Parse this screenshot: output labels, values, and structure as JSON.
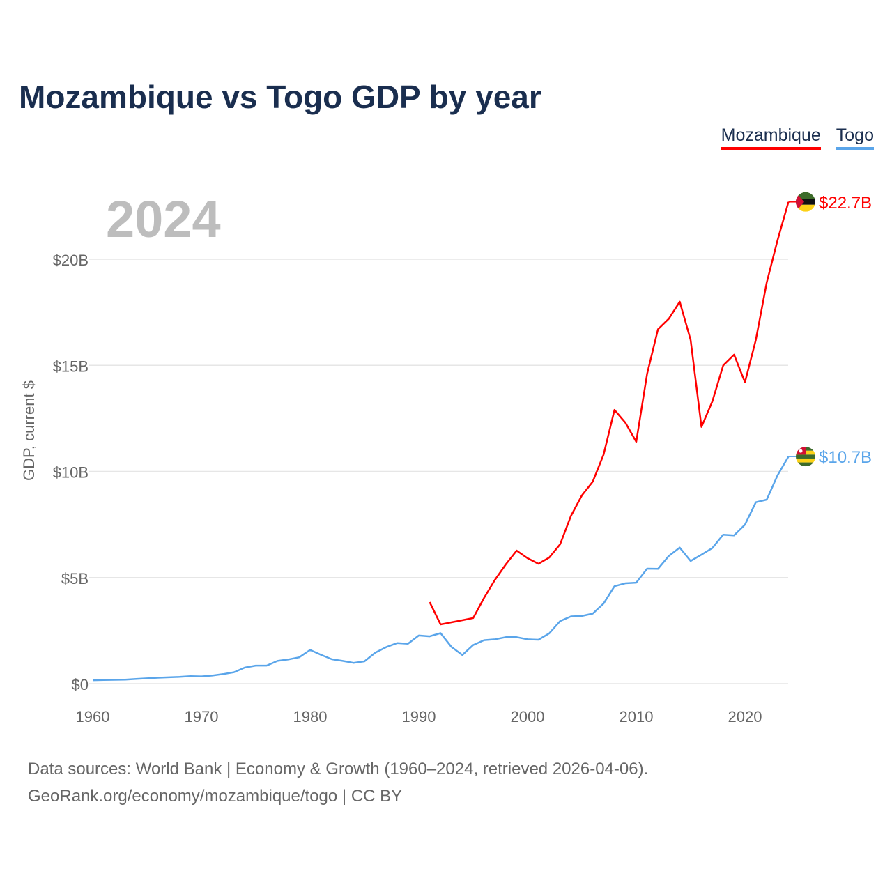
{
  "title": "Mozambique vs Togo GDP by year",
  "year_label": "2024",
  "footer": {
    "line1": "Data sources: World Bank | Economy & Growth (1960–2024, retrieved 2026-04-06).",
    "line2": "GeoRank.org/economy/mozambique/togo | CC BY"
  },
  "chart_data": {
    "type": "line",
    "title": "Mozambique vs Togo GDP by year",
    "xlabel": "",
    "ylabel": "GDP, current $",
    "xlim": [
      1960,
      2024
    ],
    "ylim": [
      0,
      23
    ],
    "x_ticks": [
      1960,
      1970,
      1980,
      1990,
      2000,
      2010,
      2020
    ],
    "y_ticks": [
      {
        "v": 0,
        "label": "$0"
      },
      {
        "v": 5,
        "label": "$5B"
      },
      {
        "v": 10,
        "label": "$10B"
      },
      {
        "v": 15,
        "label": "$15B"
      },
      {
        "v": 20,
        "label": "$20B"
      }
    ],
    "grid": true,
    "legend_position": "top-right",
    "series": [
      {
        "name": "Mozambique",
        "color": "#ff0000",
        "end_label": "$22.7B",
        "flag": "mozambique-flag",
        "start": 1991,
        "values": [
          3.84,
          2.79,
          2.89,
          2.99,
          3.09,
          4.04,
          4.89,
          5.62,
          6.27,
          5.91,
          5.65,
          5.94,
          6.57,
          7.91,
          8.87,
          9.52,
          10.8,
          12.9,
          12.3,
          11.4,
          14.6,
          16.7,
          17.2,
          18.0,
          16.2,
          12.1,
          13.3,
          15.0,
          15.5,
          14.2,
          16.2,
          18.9,
          20.9,
          22.7
        ]
      },
      {
        "name": "Togo",
        "color": "#5aa5ea",
        "end_label": "$10.7B",
        "flag": "togo-flag",
        "start": 1960,
        "values": [
          0.16,
          0.17,
          0.18,
          0.19,
          0.22,
          0.25,
          0.28,
          0.3,
          0.32,
          0.35,
          0.34,
          0.38,
          0.45,
          0.54,
          0.76,
          0.85,
          0.85,
          1.07,
          1.14,
          1.24,
          1.59,
          1.36,
          1.15,
          1.07,
          0.98,
          1.05,
          1.46,
          1.72,
          1.91,
          1.88,
          2.27,
          2.23,
          2.38,
          1.73,
          1.35,
          1.82,
          2.05,
          2.09,
          2.19,
          2.19,
          2.09,
          2.07,
          2.37,
          2.95,
          3.17,
          3.19,
          3.3,
          3.78,
          4.59,
          4.73,
          4.76,
          5.42,
          5.41,
          6.02,
          6.41,
          5.78,
          6.08,
          6.39,
          7.02,
          6.99,
          7.49,
          8.55,
          8.67,
          9.82,
          10.7
        ]
      }
    ]
  }
}
